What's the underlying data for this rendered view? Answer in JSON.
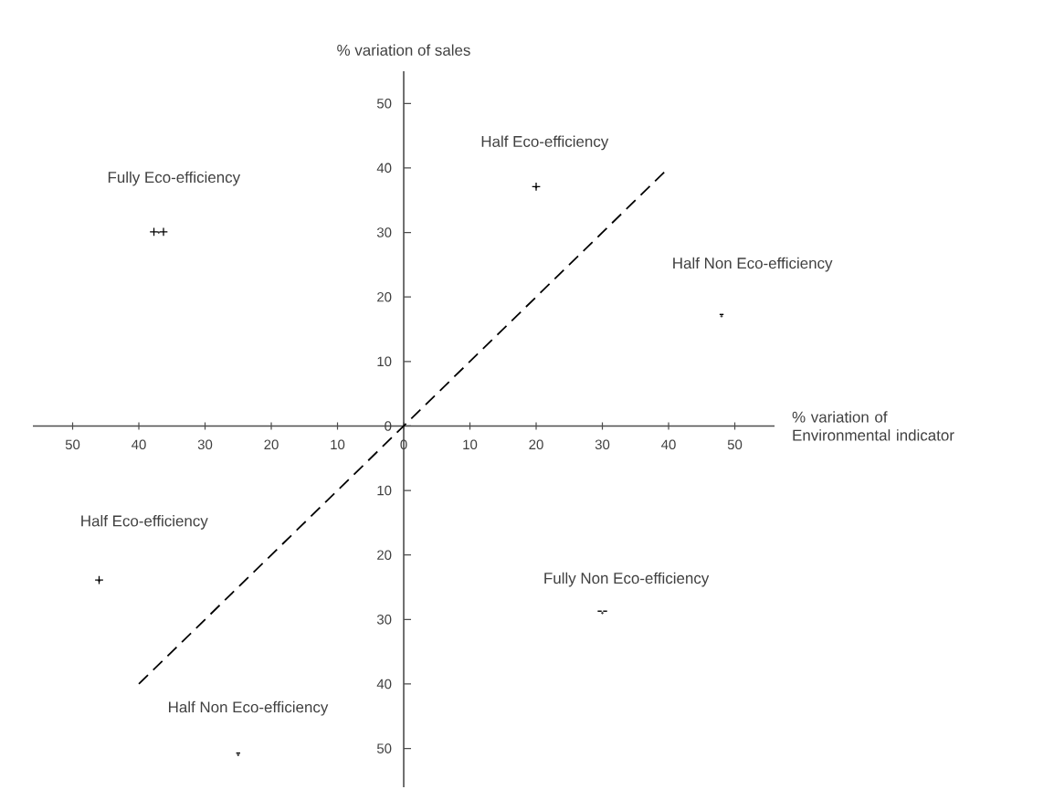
{
  "chart_data": {
    "type": "scatter",
    "xlabel": "% variation of Environmental indicator",
    "ylabel": "% variation of sales",
    "xlim": [
      -56,
      56
    ],
    "ylim": [
      -56,
      55
    ],
    "xticks": [
      {
        "value": -50,
        "label": "50"
      },
      {
        "value": -40,
        "label": "40"
      },
      {
        "value": -30,
        "label": "30"
      },
      {
        "value": -20,
        "label": "20"
      },
      {
        "value": -10,
        "label": "10"
      },
      0,
      10,
      20,
      30,
      40,
      50
    ],
    "yticks": [
      {
        "value": -50,
        "label": "50"
      },
      {
        "value": -40,
        "label": "40"
      },
      {
        "value": -30,
        "label": "30"
      },
      {
        "value": -20,
        "label": "20"
      },
      {
        "value": -10,
        "label": "10"
      },
      0,
      10,
      20,
      30,
      40,
      50
    ],
    "series": [
      {
        "x": [
          -37,
          20,
          48,
          -46,
          30,
          -25
        ],
        "values": [
          30,
          37,
          17,
          -24,
          -29,
          -51
        ],
        "color": "#333333",
        "value_labels": [
          "++",
          "+",
          "-",
          "+",
          "--",
          "-"
        ]
      },
      {
        "type": "line",
        "x": [
          -40,
          40
        ],
        "values": [
          -40,
          40
        ],
        "color": "#000000",
        "line_style": "dashed"
      }
    ],
    "annotations": [
      "Fully Eco-efficiency",
      "Half Eco-efficiency",
      "Half Non Eco-efficiency",
      "Half Eco-efficiency",
      "Fully Non Eco-efficiency",
      "Half Non Eco-efficiency"
    ]
  }
}
